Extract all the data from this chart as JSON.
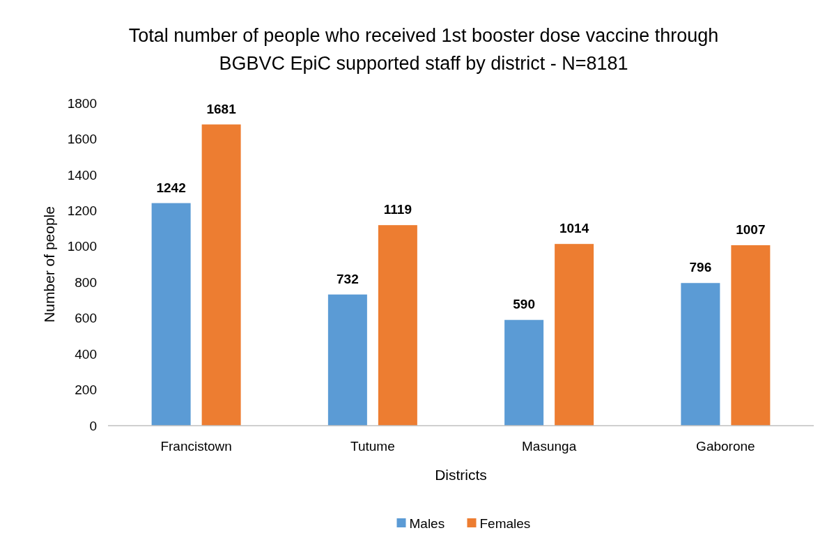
{
  "chart_data": {
    "type": "bar",
    "title": "Total number of people who received 1st booster dose vaccine through BGBVC EpiC supported staff by district - N=8181",
    "xlabel": "Districts",
    "ylabel": "Number of people",
    "categories": [
      "Francistown",
      "Tutume",
      "Masunga",
      "Gaborone"
    ],
    "series": [
      {
        "name": "Males",
        "color": "#5b9bd5",
        "values": [
          1242,
          732,
          590,
          796
        ]
      },
      {
        "name": "Females",
        "color": "#ed7d31",
        "values": [
          1681,
          1119,
          1014,
          1007
        ]
      }
    ],
    "ylim": [
      0,
      1800
    ],
    "yticks": [
      0,
      200,
      400,
      600,
      800,
      1000,
      1200,
      1400,
      1600,
      1800
    ],
    "grid": false,
    "legend": "bottom",
    "data_labels": true
  }
}
